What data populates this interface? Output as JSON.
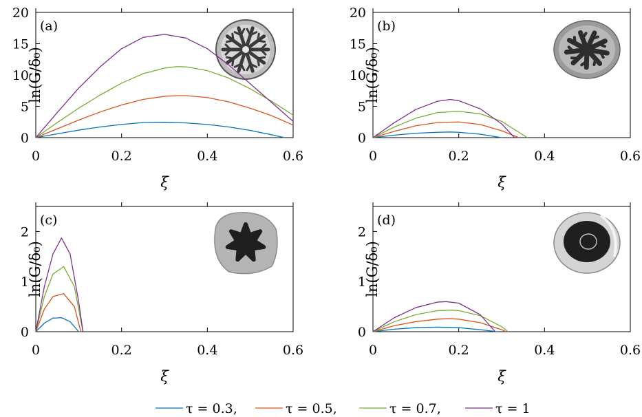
{
  "chart_data": [
    {
      "type": "line",
      "panel_label": "(a)",
      "xlabel": "ξ",
      "ylabel": "ln(G/δ₀)",
      "xlim": [
        0,
        0.6
      ],
      "ylim": [
        0,
        20
      ],
      "xticks": [
        "0",
        "0.2",
        "0.4",
        "0.6"
      ],
      "yticks": [
        "0",
        "5",
        "10",
        "15",
        "20"
      ],
      "inset": "dendritic-pattern",
      "series": [
        {
          "name": "τ = 0.3",
          "color": "#0072bd",
          "x": [
            0,
            0.05,
            0.1,
            0.15,
            0.2,
            0.25,
            0.3,
            0.35,
            0.4,
            0.45,
            0.5,
            0.55,
            0.58
          ],
          "values": [
            0,
            0.6,
            1.2,
            1.7,
            2.1,
            2.4,
            2.45,
            2.35,
            2.1,
            1.7,
            1.15,
            0.45,
            0
          ]
        },
        {
          "name": "τ = 0.5",
          "color": "#d95319",
          "x": [
            0,
            0.05,
            0.1,
            0.15,
            0.2,
            0.25,
            0.3,
            0.33,
            0.35,
            0.4,
            0.45,
            0.5,
            0.55,
            0.6
          ],
          "values": [
            0,
            1.4,
            2.8,
            4.1,
            5.2,
            6.1,
            6.6,
            6.7,
            6.7,
            6.4,
            5.7,
            4.7,
            3.5,
            2.0
          ]
        },
        {
          "name": "τ = 0.7",
          "color": "#77ac30",
          "x": [
            0,
            0.05,
            0.1,
            0.15,
            0.2,
            0.25,
            0.3,
            0.33,
            0.35,
            0.4,
            0.45,
            0.5,
            0.55,
            0.6
          ],
          "values": [
            0,
            2.4,
            4.7,
            6.8,
            8.7,
            10.2,
            11.1,
            11.35,
            11.3,
            10.7,
            9.5,
            7.8,
            5.8,
            3.6
          ]
        },
        {
          "name": "τ = 1",
          "color": "#7e2f8e",
          "x": [
            0,
            0.05,
            0.1,
            0.15,
            0.2,
            0.25,
            0.3,
            0.35,
            0.4,
            0.45,
            0.5,
            0.55,
            0.6
          ],
          "values": [
            0,
            4.0,
            7.9,
            11.3,
            14.2,
            16.0,
            16.5,
            15.9,
            14.2,
            11.6,
            8.6,
            5.6,
            2.6
          ]
        }
      ]
    },
    {
      "type": "line",
      "panel_label": "(b)",
      "xlabel": "ξ",
      "ylabel": "ln(G/δ₀)",
      "xlim": [
        0,
        0.6
      ],
      "ylim": [
        0,
        20
      ],
      "xticks": [
        "0",
        "0.2",
        "0.4",
        "0.6"
      ],
      "yticks": [
        "0",
        "5",
        "10",
        "15",
        "20"
      ],
      "inset": "branched-pattern",
      "series": [
        {
          "name": "τ = 0.3",
          "color": "#0072bd",
          "x": [
            0,
            0.05,
            0.1,
            0.15,
            0.18,
            0.2,
            0.25,
            0.3
          ],
          "values": [
            0,
            0.4,
            0.7,
            0.85,
            0.9,
            0.85,
            0.55,
            0
          ]
        },
        {
          "name": "τ = 0.5",
          "color": "#d95319",
          "x": [
            0,
            0.05,
            0.1,
            0.15,
            0.2,
            0.25,
            0.3,
            0.34
          ],
          "values": [
            0,
            1.0,
            1.9,
            2.4,
            2.5,
            2.1,
            1.1,
            0
          ]
        },
        {
          "name": "τ = 0.7",
          "color": "#77ac30",
          "x": [
            0,
            0.05,
            0.1,
            0.15,
            0.2,
            0.25,
            0.3,
            0.36
          ],
          "values": [
            0,
            1.7,
            3.1,
            4.0,
            4.2,
            3.8,
            2.6,
            0
          ]
        },
        {
          "name": "τ = 1",
          "color": "#7e2f8e",
          "x": [
            0,
            0.05,
            0.1,
            0.15,
            0.18,
            0.2,
            0.25,
            0.3,
            0.33
          ],
          "values": [
            0,
            2.4,
            4.5,
            5.8,
            6.1,
            5.9,
            4.6,
            2.2,
            0
          ]
        }
      ]
    },
    {
      "type": "line",
      "panel_label": "(c)",
      "xlabel": "ξ",
      "ylabel": "ln(G/δ₀)",
      "xlim": [
        0,
        0.6
      ],
      "ylim": [
        0,
        2.5
      ],
      "xticks": [
        "0",
        "0.2",
        "0.4",
        "0.6"
      ],
      "yticks": [
        "0",
        "1",
        "2"
      ],
      "inset": "fingered-blob",
      "series": [
        {
          "name": "τ = 0.3",
          "color": "#0072bd",
          "x": [
            0,
            0.02,
            0.04,
            0.06,
            0.08,
            0.1
          ],
          "values": [
            0,
            0.17,
            0.27,
            0.28,
            0.2,
            0
          ]
        },
        {
          "name": "τ = 0.5",
          "color": "#d95319",
          "x": [
            0,
            0.02,
            0.04,
            0.065,
            0.09,
            0.105
          ],
          "values": [
            0,
            0.45,
            0.7,
            0.76,
            0.5,
            0
          ]
        },
        {
          "name": "τ = 0.7",
          "color": "#77ac30",
          "x": [
            0,
            0.02,
            0.04,
            0.065,
            0.09,
            0.11
          ],
          "values": [
            0,
            0.7,
            1.15,
            1.3,
            0.9,
            0
          ]
        },
        {
          "name": "τ = 1",
          "color": "#7e2f8e",
          "x": [
            0,
            0.02,
            0.04,
            0.06,
            0.08,
            0.1,
            0.11
          ],
          "values": [
            0,
            0.9,
            1.55,
            1.87,
            1.55,
            0.6,
            0
          ]
        }
      ]
    },
    {
      "type": "line",
      "panel_label": "(d)",
      "xlabel": "ξ",
      "ylabel": "ln(G/δ₀)",
      "xlim": [
        0,
        0.6
      ],
      "ylim": [
        0,
        2.5
      ],
      "xticks": [
        "0",
        "0.2",
        "0.4",
        "0.6"
      ],
      "yticks": [
        "0",
        "1",
        "2"
      ],
      "inset": "ring-disk",
      "series": [
        {
          "name": "τ = 0.3",
          "color": "#0072bd",
          "x": [
            0,
            0.05,
            0.1,
            0.15,
            0.2,
            0.25,
            0.29
          ],
          "values": [
            0,
            0.05,
            0.08,
            0.09,
            0.08,
            0.04,
            0
          ]
        },
        {
          "name": "τ = 0.5",
          "color": "#d95319",
          "x": [
            0,
            0.05,
            0.1,
            0.15,
            0.18,
            0.2,
            0.25,
            0.3,
            0.31
          ],
          "values": [
            0,
            0.12,
            0.2,
            0.25,
            0.26,
            0.25,
            0.18,
            0.04,
            0
          ]
        },
        {
          "name": "τ = 0.7",
          "color": "#77ac30",
          "x": [
            0,
            0.05,
            0.1,
            0.15,
            0.18,
            0.2,
            0.25,
            0.3,
            0.315
          ],
          "values": [
            0,
            0.2,
            0.34,
            0.42,
            0.43,
            0.42,
            0.32,
            0.1,
            0
          ]
        },
        {
          "name": "τ = 1",
          "color": "#7e2f8e",
          "x": [
            0,
            0.05,
            0.1,
            0.15,
            0.17,
            0.2,
            0.25,
            0.285
          ],
          "values": [
            0,
            0.28,
            0.48,
            0.59,
            0.6,
            0.57,
            0.34,
            0
          ]
        }
      ]
    }
  ],
  "legend": [
    {
      "label": "τ = 0.3,",
      "color": "#0072bd"
    },
    {
      "label": "τ = 0.5,",
      "color": "#d95319"
    },
    {
      "label": "τ = 0.7,",
      "color": "#77ac30"
    },
    {
      "label": "τ = 1",
      "color": "#7e2f8e"
    }
  ]
}
